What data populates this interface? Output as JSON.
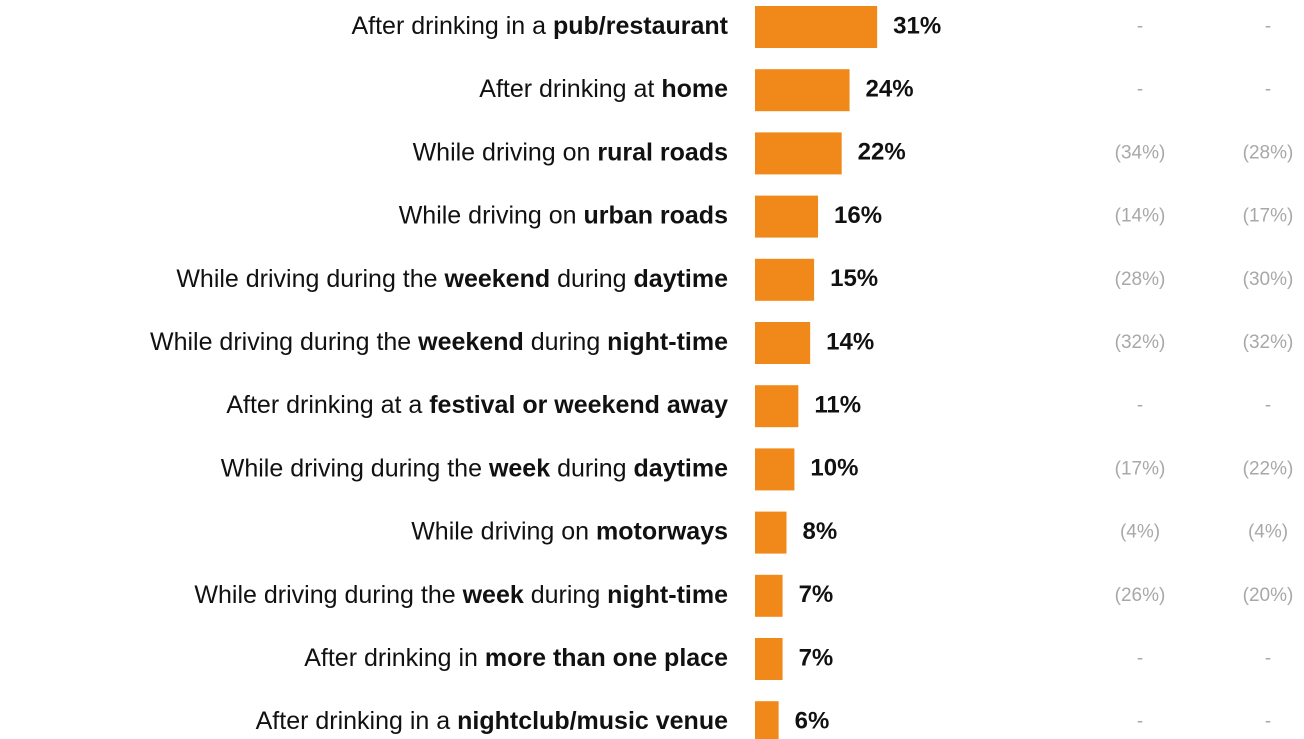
{
  "chart_data": {
    "type": "bar",
    "orientation": "horizontal",
    "categories": [
      [
        "After drinking in a ",
        "pub/restaurant"
      ],
      [
        "After drinking at ",
        "home"
      ],
      [
        "While driving on ",
        "rural roads"
      ],
      [
        "While driving on ",
        "urban roads"
      ],
      [
        "While driving during the ",
        "weekend",
        " during ",
        "daytime"
      ],
      [
        "While driving during the ",
        "weekend",
        " during ",
        "night-time"
      ],
      [
        "After drinking at a ",
        "festival or weekend away"
      ],
      [
        "While driving during the ",
        "week",
        " during ",
        "daytime"
      ],
      [
        "While driving on ",
        "motorways"
      ],
      [
        "While driving during the ",
        "week",
        " during ",
        "night-time"
      ],
      [
        "After drinking in ",
        "more than one place"
      ],
      [
        "After drinking in a ",
        "nightclub/music venue"
      ]
    ],
    "values": [
      31,
      24,
      22,
      16,
      15,
      14,
      11,
      10,
      8,
      7,
      7,
      6
    ],
    "value_labels": [
      "31%",
      "24%",
      "22%",
      "16%",
      "15%",
      "14%",
      "11%",
      "10%",
      "8%",
      "7%",
      "7%",
      "6%"
    ],
    "color": "#f0891a",
    "xlim": [
      0,
      100
    ],
    "extra_columns": [
      [
        "-",
        "-",
        "(34%)",
        "(14%)",
        "(28%)",
        "(32%)",
        "-",
        "(17%)",
        "(4%)",
        "(26%)",
        "-",
        "-"
      ],
      [
        "-",
        "-",
        "(28%)",
        "(17%)",
        "(30%)",
        "(32%)",
        "-",
        "(22%)",
        "(4%)",
        "(20%)",
        "-",
        "-"
      ]
    ]
  }
}
